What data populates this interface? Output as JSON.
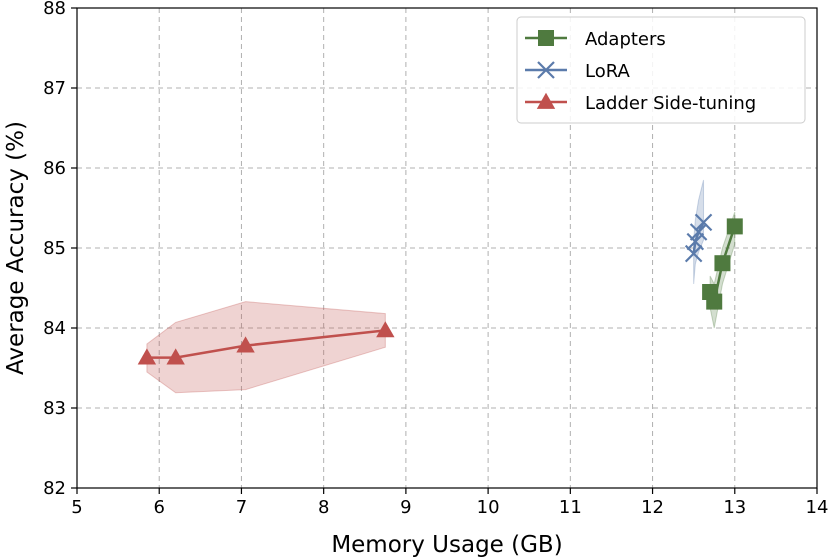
{
  "chart_data": {
    "type": "line",
    "xlabel": "Memory Usage (GB)",
    "ylabel": "Average Accuracy (%)",
    "xlim": [
      5,
      14
    ],
    "ylim": [
      82,
      88
    ],
    "xticks": [
      "5",
      "6",
      "7",
      "8",
      "9",
      "10",
      "11",
      "12",
      "13",
      "14"
    ],
    "yticks": [
      "82",
      "83",
      "84",
      "85",
      "86",
      "87",
      "88"
    ],
    "grid": true,
    "legend_position": "top-right",
    "series": [
      {
        "name": "Adapters",
        "color": "#4f7a3f",
        "marker": "square",
        "points": [
          {
            "x": 12.7,
            "y": 84.45
          },
          {
            "x": 12.75,
            "y": 84.33
          },
          {
            "x": 12.85,
            "y": 84.81
          },
          {
            "x": 13.0,
            "y": 85.27
          }
        ],
        "band_upper": [
          84.65,
          84.55,
          85.0,
          85.45
        ],
        "band_lower": [
          84.25,
          84.0,
          84.55,
          85.05
        ]
      },
      {
        "name": "LoRA",
        "color": "#5b7bab",
        "marker": "x",
        "points": [
          {
            "x": 12.5,
            "y": 84.93
          },
          {
            "x": 12.52,
            "y": 85.08
          },
          {
            "x": 12.56,
            "y": 85.2
          },
          {
            "x": 12.62,
            "y": 85.32
          }
        ],
        "band_upper": [
          85.1,
          85.35,
          85.6,
          85.85
        ],
        "band_lower": [
          84.55,
          84.8,
          84.95,
          85.1
        ]
      },
      {
        "name": "Ladder Side-tuning",
        "color": "#c0504d",
        "marker": "triangle",
        "points": [
          {
            "x": 5.85,
            "y": 83.63
          },
          {
            "x": 6.2,
            "y": 83.63
          },
          {
            "x": 7.05,
            "y": 83.78
          },
          {
            "x": 8.75,
            "y": 83.97
          }
        ],
        "band_upper": [
          83.8,
          84.07,
          84.33,
          84.18
        ],
        "band_lower": [
          83.45,
          83.19,
          83.23,
          83.76
        ]
      }
    ]
  }
}
